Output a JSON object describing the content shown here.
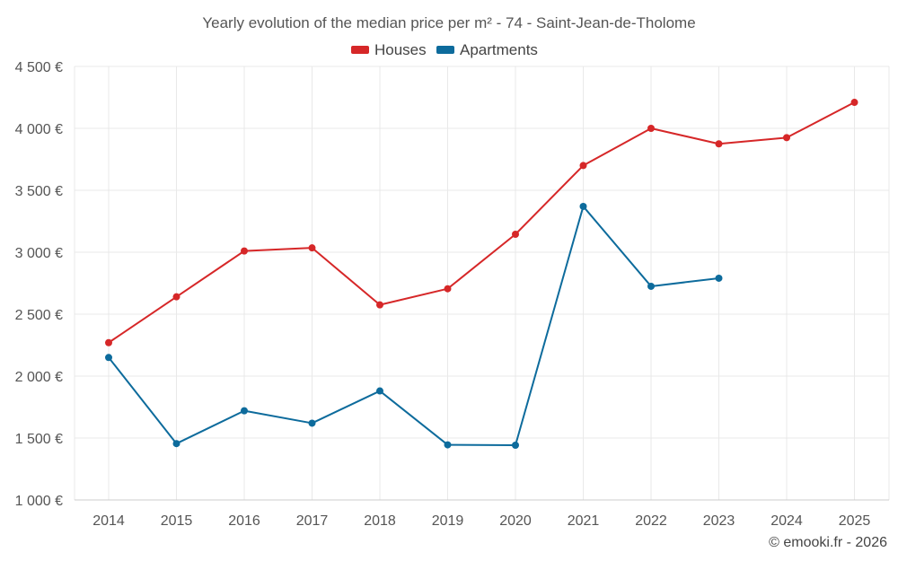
{
  "chart_data": {
    "type": "line",
    "title": "Yearly evolution of the median price per m² - 74 - Saint-Jean-de-Tholome",
    "categories": [
      "2014",
      "2015",
      "2016",
      "2017",
      "2018",
      "2019",
      "2020",
      "2021",
      "2022",
      "2023",
      "2024",
      "2025"
    ],
    "y_ticks": [
      "1 000 €",
      "1 500 €",
      "2 000 €",
      "2 500 €",
      "3 000 €",
      "3 500 €",
      "4 000 €",
      "4 500 €"
    ],
    "ylim": [
      1000,
      4500
    ],
    "series": [
      {
        "name": "Houses",
        "color": "#d62728",
        "values": [
          2270,
          2640,
          3010,
          3035,
          2575,
          2705,
          3145,
          3700,
          4000,
          3875,
          3925,
          4210
        ]
      },
      {
        "name": "Apartments",
        "color": "#0d6b9c",
        "values": [
          2150,
          1455,
          1720,
          1620,
          1880,
          1445,
          1442,
          3370,
          2725,
          2790,
          null,
          null
        ]
      }
    ],
    "credit": "© emooki.fr - 2026"
  }
}
